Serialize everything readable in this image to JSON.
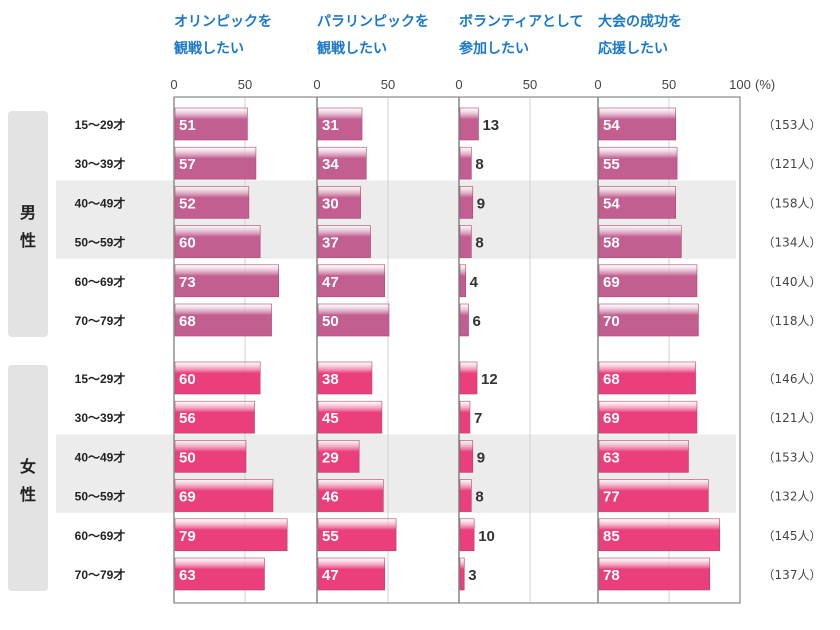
{
  "chart_data": {
    "type": "bar",
    "unit": "(%)",
    "xlim": [
      0,
      100
    ],
    "ticks": [
      "0",
      "50",
      "0",
      "50",
      "0",
      "50",
      "0",
      "50",
      "100"
    ],
    "panels": [
      {
        "title_line1": "オリンピックを",
        "title_line2": "観戦したい"
      },
      {
        "title_line1": "パラリンピックを",
        "title_line2": "観戦したい"
      },
      {
        "title_line1": "ボランティアとして",
        "title_line2": "参加したい"
      },
      {
        "title_line1": "大会の成功を",
        "title_line2": "応援したい"
      }
    ],
    "groups": [
      {
        "label_line1": "男",
        "label_line2": "性",
        "color": "#c25f90",
        "rows": [
          {
            "age": "15～29才",
            "n": "（153人）",
            "values": [
              51,
              31,
              13,
              54
            ]
          },
          {
            "age": "30～39才",
            "n": "（121人）",
            "values": [
              57,
              34,
              8,
              55
            ]
          },
          {
            "age": "40～49才",
            "n": "（158人）",
            "values": [
              52,
              30,
              9,
              54
            ]
          },
          {
            "age": "50～59才",
            "n": "（134人）",
            "values": [
              60,
              37,
              8,
              58
            ]
          },
          {
            "age": "60～69才",
            "n": "（140人）",
            "values": [
              73,
              47,
              4,
              69
            ]
          },
          {
            "age": "70～79才",
            "n": "（118人）",
            "values": [
              68,
              50,
              6,
              70
            ]
          }
        ]
      },
      {
        "label_line1": "女",
        "label_line2": "性",
        "color": "#ea3f7c",
        "rows": [
          {
            "age": "15～29才",
            "n": "（146人）",
            "values": [
              60,
              38,
              12,
              68
            ]
          },
          {
            "age": "30～39才",
            "n": "（121人）",
            "values": [
              56,
              45,
              7,
              69
            ]
          },
          {
            "age": "40～49才",
            "n": "（153人）",
            "values": [
              50,
              29,
              9,
              63
            ]
          },
          {
            "age": "50～59才",
            "n": "（132人）",
            "values": [
              69,
              46,
              8,
              77
            ]
          },
          {
            "age": "60～69才",
            "n": "（145人）",
            "values": [
              79,
              55,
              10,
              85
            ]
          },
          {
            "age": "70～79才",
            "n": "（137人）",
            "values": [
              63,
              47,
              3,
              78
            ]
          }
        ]
      }
    ]
  }
}
